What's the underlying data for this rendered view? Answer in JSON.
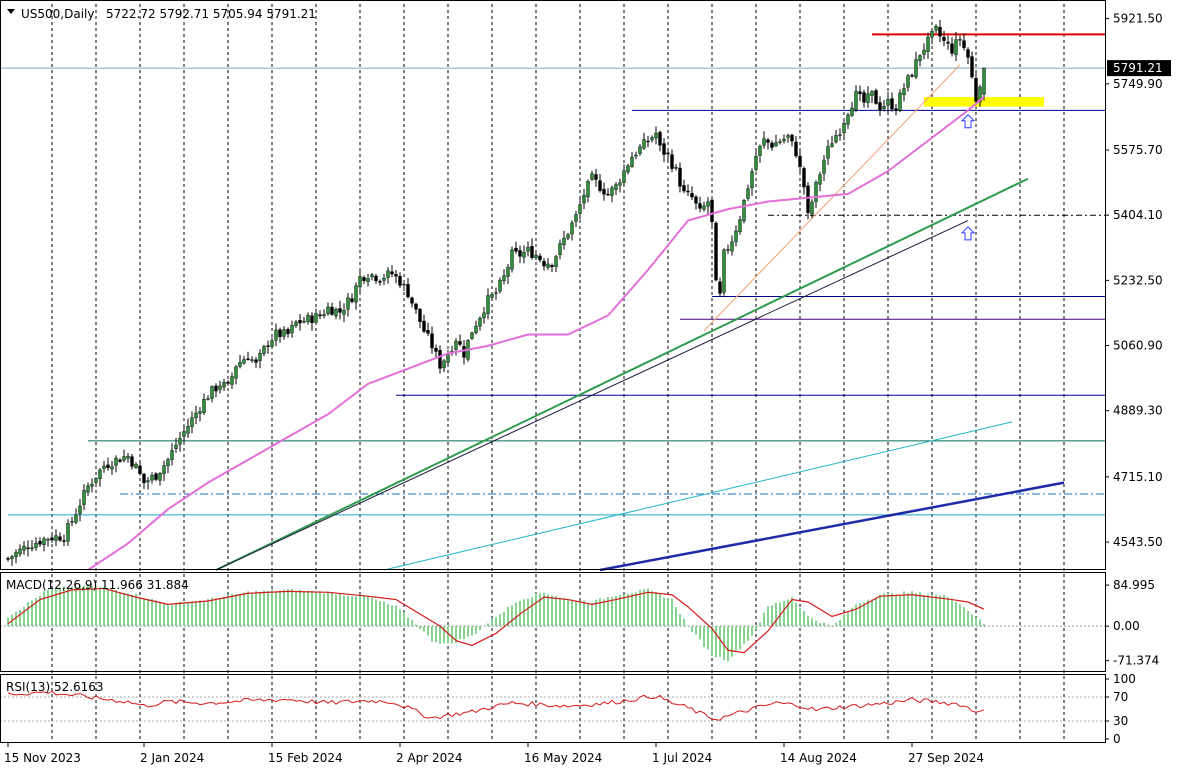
{
  "chart_data": {
    "type": "candlestick",
    "symbol_label": "US500,Daily",
    "ohlc_label": "5722.72 5792.71 5705.94 5791.21",
    "last_price_label": "5791.21",
    "last": {
      "open": 5722.72,
      "high": 5792.71,
      "low": 5705.94,
      "close": 5791.21
    },
    "price_axis": {
      "ylim": [
        4470,
        5960
      ],
      "ticks": [
        {
          "value": 5921.5,
          "label": "5921.50"
        },
        {
          "value": 5749.9,
          "label": "5749.90"
        },
        {
          "value": 5575.7,
          "label": "5575.70"
        },
        {
          "value": 5404.1,
          "label": "5404.10"
        },
        {
          "value": 5232.5,
          "label": "5232.50"
        },
        {
          "value": 5060.9,
          "label": "5060.90"
        },
        {
          "value": 4889.3,
          "label": "4889.30"
        },
        {
          "value": 4715.1,
          "label": "4715.10"
        },
        {
          "value": 4543.5,
          "label": "4543.50"
        }
      ]
    },
    "time_axis": {
      "labels": [
        "15 Nov 2023",
        "2 Jan 2024",
        "15 Feb 2024",
        "2 Apr 2024",
        "16 May 2024",
        "1 Jul 2024",
        "14 Aug 2024",
        "27 Sep 2024"
      ],
      "label_bar_index": [
        0,
        34,
        66,
        98,
        130,
        162,
        194,
        226
      ]
    },
    "close_path": [
      [
        0,
        4500
      ],
      [
        5,
        4535
      ],
      [
        10,
        4555
      ],
      [
        14,
        4560
      ],
      [
        16,
        4600
      ],
      [
        20,
        4690
      ],
      [
        24,
        4745
      ],
      [
        28,
        4765
      ],
      [
        30,
        4770
      ],
      [
        32,
        4740
      ],
      [
        34,
        4700
      ],
      [
        37,
        4720
      ],
      [
        40,
        4760
      ],
      [
        42,
        4800
      ],
      [
        45,
        4850
      ],
      [
        48,
        4900
      ],
      [
        50,
        4930
      ],
      [
        53,
        4960
      ],
      [
        55,
        4950
      ],
      [
        57,
        5010
      ],
      [
        60,
        5035
      ],
      [
        62,
        5010
      ],
      [
        65,
        5070
      ],
      [
        67,
        5090
      ],
      [
        70,
        5090
      ],
      [
        72,
        5120
      ],
      [
        75,
        5130
      ],
      [
        78,
        5140
      ],
      [
        80,
        5160
      ],
      [
        83,
        5150
      ],
      [
        86,
        5190
      ],
      [
        88,
        5240
      ],
      [
        90,
        5250
      ],
      [
        93,
        5240
      ],
      [
        96,
        5250
      ],
      [
        98,
        5230
      ],
      [
        100,
        5200
      ],
      [
        102,
        5150
      ],
      [
        104,
        5100
      ],
      [
        106,
        5060
      ],
      [
        108,
        5010
      ],
      [
        110,
        5040
      ],
      [
        112,
        5080
      ],
      [
        114,
        5040
      ],
      [
        116,
        5100
      ],
      [
        118,
        5140
      ],
      [
        120,
        5180
      ],
      [
        122,
        5200
      ],
      [
        124,
        5240
      ],
      [
        126,
        5300
      ],
      [
        128,
        5300
      ],
      [
        130,
        5310
      ],
      [
        132,
        5300
      ],
      [
        134,
        5280
      ],
      [
        136,
        5280
      ],
      [
        138,
        5320
      ],
      [
        140,
        5360
      ],
      [
        142,
        5400
      ],
      [
        144,
        5460
      ],
      [
        146,
        5500
      ],
      [
        148,
        5480
      ],
      [
        150,
        5460
      ],
      [
        152,
        5480
      ],
      [
        154,
        5520
      ],
      [
        156,
        5560
      ],
      [
        158,
        5580
      ],
      [
        160,
        5600
      ],
      [
        162,
        5620
      ],
      [
        163,
        5580
      ],
      [
        165,
        5560
      ],
      [
        167,
        5520
      ],
      [
        169,
        5460
      ],
      [
        171,
        5450
      ],
      [
        173,
        5410
      ],
      [
        175,
        5440
      ],
      [
        176,
        5380
      ],
      [
        177,
        5220
      ],
      [
        178,
        5190
      ],
      [
        179,
        5300
      ],
      [
        181,
        5340
      ],
      [
        183,
        5400
      ],
      [
        185,
        5480
      ],
      [
        187,
        5560
      ],
      [
        189,
        5600
      ],
      [
        191,
        5590
      ],
      [
        193,
        5600
      ],
      [
        195,
        5610
      ],
      [
        197,
        5570
      ],
      [
        199,
        5480
      ],
      [
        200,
        5400
      ],
      [
        202,
        5480
      ],
      [
        204,
        5550
      ],
      [
        206,
        5600
      ],
      [
        208,
        5630
      ],
      [
        210,
        5680
      ],
      [
        212,
        5720
      ],
      [
        214,
        5700
      ],
      [
        216,
        5720
      ],
      [
        218,
        5690
      ],
      [
        220,
        5700
      ],
      [
        222,
        5690
      ],
      [
        224,
        5740
      ],
      [
        226,
        5780
      ],
      [
        228,
        5830
      ],
      [
        230,
        5860
      ],
      [
        232,
        5890
      ],
      [
        234,
        5860
      ],
      [
        236,
        5840
      ],
      [
        238,
        5870
      ],
      [
        240,
        5820
      ],
      [
        242,
        5710
      ],
      [
        244,
        5800
      ]
    ],
    "ma50_path": [
      [
        20,
        4470
      ],
      [
        30,
        4540
      ],
      [
        40,
        4630
      ],
      [
        50,
        4700
      ],
      [
        60,
        4760
      ],
      [
        70,
        4820
      ],
      [
        80,
        4880
      ],
      [
        90,
        4960
      ],
      [
        100,
        5000
      ],
      [
        110,
        5040
      ],
      [
        120,
        5060
      ],
      [
        130,
        5090
      ],
      [
        140,
        5090
      ],
      [
        150,
        5140
      ],
      [
        160,
        5260
      ],
      [
        170,
        5390
      ],
      [
        180,
        5420
      ],
      [
        190,
        5440
      ],
      [
        200,
        5450
      ],
      [
        210,
        5460
      ],
      [
        220,
        5520
      ],
      [
        230,
        5600
      ],
      [
        240,
        5680
      ],
      [
        244,
        5715
      ]
    ],
    "horizontal_levels": [
      {
        "name": "red-resistance",
        "price": 5880,
        "x_from_bar": 216,
        "color": "#e00000",
        "width": 2,
        "dash": ""
      },
      {
        "name": "blue-level-5680",
        "price": 5680,
        "x_from_bar": 156,
        "color": "#00008b",
        "width": 1,
        "dash": ""
      },
      {
        "name": "dashdot-level-5400",
        "price": 5404,
        "x_from_bar": 190,
        "color": "#000000",
        "width": 1,
        "dash": "6,3,2,3"
      },
      {
        "name": "blue-level-5190",
        "price": 5190,
        "x_from_bar": 176,
        "color": "#00008b",
        "width": 1,
        "dash": ""
      },
      {
        "name": "purple-level-5130",
        "price": 5130,
        "x_from_bar": 168,
        "color": "#4b0082",
        "width": 1,
        "dash": ""
      },
      {
        "name": "blue-level-4930",
        "price": 4930,
        "x_from_bar": 97,
        "color": "#00008b",
        "width": 1,
        "dash": ""
      },
      {
        "name": "teal-level-4810",
        "price": 4810,
        "x_from_bar": 20,
        "color": "#006d5b",
        "width": 1,
        "dash": ""
      },
      {
        "name": "blue-dashdot-level-4670",
        "price": 4670,
        "x_from_bar": 28,
        "color": "#1e6fbf",
        "width": 1,
        "dash": "8,3,2,3"
      },
      {
        "name": "cyan-level-4615",
        "price": 4615,
        "x_from_bar": 0,
        "color": "#17a6c9",
        "width": 1,
        "dash": ""
      }
    ],
    "trendlines": [
      {
        "name": "green-trendline",
        "from": [
          52,
          4470
        ],
        "to": [
          255,
          5500
        ],
        "color": "#2e9b4e",
        "width": 2
      },
      {
        "name": "black-trendline",
        "from": [
          52,
          4470
        ],
        "to": [
          240,
          5390
        ],
        "color": "#1a1a3a",
        "width": 1
      },
      {
        "name": "cyan-trendline",
        "from": [
          94,
          4470
        ],
        "to": [
          251,
          4860
        ],
        "color": "#1fb5c8",
        "width": 1
      },
      {
        "name": "navy-thick-trendline",
        "from": [
          148,
          4470
        ],
        "to": [
          264,
          4700
        ],
        "color": "#1f2aa8",
        "width": 2.5
      },
      {
        "name": "orange-thin-trendline",
        "from": [
          174,
          5100
        ],
        "to": [
          238,
          5800
        ],
        "color": "#f4a070",
        "width": 1
      }
    ],
    "highlight_zone": {
      "from_bar": 229,
      "to_bar": 259,
      "price_top": 5715,
      "price_bottom": 5690,
      "color": "#ffff00"
    },
    "arrows": [
      {
        "name": "up-arrow-1",
        "bar": 240,
        "price": 5650
      },
      {
        "name": "up-arrow-2",
        "bar": 240,
        "price": 5355
      }
    ],
    "macd": {
      "label": "MACD(12,26,9) 11.966 31.884",
      "ylim": [
        -95,
        110
      ],
      "ticks": [
        {
          "value": 84.995,
          "label": "84.995"
        },
        {
          "value": 0,
          "label": "0.00"
        },
        {
          "value": -71.374,
          "label": "-71.374"
        }
      ],
      "hist_path": [
        [
          0,
          20
        ],
        [
          10,
          75
        ],
        [
          20,
          85
        ],
        [
          30,
          70
        ],
        [
          40,
          45
        ],
        [
          50,
          55
        ],
        [
          60,
          70
        ],
        [
          70,
          75
        ],
        [
          80,
          70
        ],
        [
          90,
          60
        ],
        [
          97,
          40
        ],
        [
          102,
          5
        ],
        [
          106,
          -30
        ],
        [
          110,
          -38
        ],
        [
          116,
          -20
        ],
        [
          122,
          20
        ],
        [
          128,
          55
        ],
        [
          134,
          70
        ],
        [
          140,
          55
        ],
        [
          146,
          50
        ],
        [
          152,
          65
        ],
        [
          160,
          75
        ],
        [
          166,
          55
        ],
        [
          170,
          0
        ],
        [
          176,
          -60
        ],
        [
          180,
          -70
        ],
        [
          186,
          -20
        ],
        [
          190,
          40
        ],
        [
          196,
          60
        ],
        [
          200,
          20
        ],
        [
          206,
          -2
        ],
        [
          212,
          45
        ],
        [
          218,
          65
        ],
        [
          226,
          70
        ],
        [
          236,
          60
        ],
        [
          244,
          5
        ]
      ],
      "signal_path": [
        [
          0,
          5
        ],
        [
          8,
          55
        ],
        [
          16,
          75
        ],
        [
          24,
          78
        ],
        [
          32,
          60
        ],
        [
          40,
          45
        ],
        [
          50,
          52
        ],
        [
          60,
          68
        ],
        [
          70,
          72
        ],
        [
          80,
          70
        ],
        [
          90,
          62
        ],
        [
          97,
          55
        ],
        [
          102,
          30
        ],
        [
          108,
          0
        ],
        [
          112,
          -30
        ],
        [
          116,
          -40
        ],
        [
          122,
          -15
        ],
        [
          128,
          25
        ],
        [
          134,
          60
        ],
        [
          140,
          55
        ],
        [
          146,
          45
        ],
        [
          152,
          55
        ],
        [
          160,
          70
        ],
        [
          166,
          65
        ],
        [
          170,
          40
        ],
        [
          176,
          -5
        ],
        [
          180,
          -50
        ],
        [
          184,
          -55
        ],
        [
          190,
          -10
        ],
        [
          196,
          55
        ],
        [
          200,
          50
        ],
        [
          206,
          20
        ],
        [
          212,
          35
        ],
        [
          218,
          62
        ],
        [
          226,
          65
        ],
        [
          236,
          55
        ],
        [
          240,
          50
        ],
        [
          244,
          35
        ]
      ]
    },
    "rsi": {
      "label": "RSI(13) 52.6163",
      "ylim": [
        0,
        100
      ],
      "ticks": [
        {
          "value": 100,
          "label": "100"
        },
        {
          "value": 70,
          "label": "70"
        },
        {
          "value": 30,
          "label": "30"
        },
        {
          "value": 0,
          "label": "0"
        }
      ],
      "levels": [
        70,
        30
      ],
      "path": [
        [
          0,
          75
        ],
        [
          10,
          78
        ],
        [
          20,
          70
        ],
        [
          30,
          62
        ],
        [
          34,
          55
        ],
        [
          40,
          62
        ],
        [
          50,
          60
        ],
        [
          60,
          64
        ],
        [
          70,
          66
        ],
        [
          80,
          60
        ],
        [
          90,
          64
        ],
        [
          96,
          62
        ],
        [
          100,
          52
        ],
        [
          104,
          40
        ],
        [
          106,
          35
        ],
        [
          110,
          40
        ],
        [
          116,
          45
        ],
        [
          120,
          52
        ],
        [
          126,
          60
        ],
        [
          132,
          58
        ],
        [
          140,
          55
        ],
        [
          150,
          60
        ],
        [
          158,
          68
        ],
        [
          162,
          72
        ],
        [
          166,
          60
        ],
        [
          170,
          52
        ],
        [
          174,
          40
        ],
        [
          177,
          33
        ],
        [
          180,
          38
        ],
        [
          186,
          50
        ],
        [
          192,
          60
        ],
        [
          198,
          56
        ],
        [
          202,
          48
        ],
        [
          206,
          52
        ],
        [
          212,
          55
        ],
        [
          220,
          60
        ],
        [
          226,
          65
        ],
        [
          232,
          62
        ],
        [
          238,
          58
        ],
        [
          242,
          45
        ],
        [
          244,
          52
        ]
      ]
    }
  }
}
